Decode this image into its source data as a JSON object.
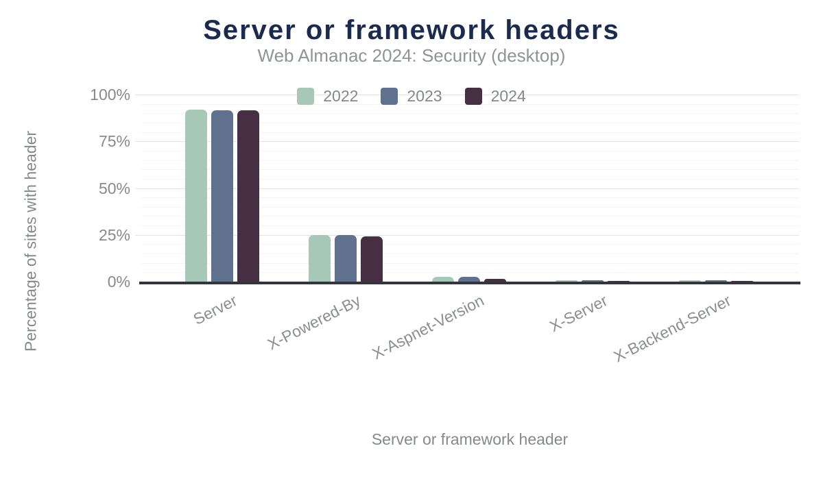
{
  "header": {
    "title": "Server or framework headers",
    "subtitle": "Web Almanac 2024: Security (desktop)"
  },
  "style": {
    "title_color": "#1b2b4d",
    "subtitle_color": "#8f9499",
    "label_color": "#87898d",
    "axis_line_color": "#33363c",
    "grid_major_color": "#e2e2e6",
    "grid_minor_color": "#f4f4f6",
    "background": "#ffffff"
  },
  "chart_data": {
    "type": "bar",
    "title": "Server or framework headers",
    "subtitle": "Web Almanac 2024: Security (desktop)",
    "categories": [
      "Server",
      "X-Powered-By",
      "X-Aspnet-Version",
      "X-Server",
      "X-Backend-Server"
    ],
    "series": [
      {
        "name": "2022",
        "color": "#a7c8b7",
        "values": [
          92,
          25,
          2.5,
          0.7,
          0.7
        ]
      },
      {
        "name": "2023",
        "color": "#5f718c",
        "values": [
          91.5,
          25,
          2.5,
          0.7,
          0.7
        ]
      },
      {
        "name": "2024",
        "color": "#472f43",
        "values": [
          91.4,
          24,
          1.5,
          0.5,
          0.5
        ]
      }
    ],
    "xlabel": "Server or framework header",
    "ylabel": "Percentage of sites with header",
    "ylim": [
      0,
      100
    ],
    "y_major_ticks": [
      0,
      25,
      50,
      75,
      100
    ],
    "y_major_tick_labels": [
      "0%",
      "25%",
      "50%",
      "75%",
      "100%"
    ],
    "y_minor_step": 5,
    "grid": true,
    "legend_position": "top",
    "bar_corner": "rounded-top",
    "x_label_angle_deg": -27
  }
}
